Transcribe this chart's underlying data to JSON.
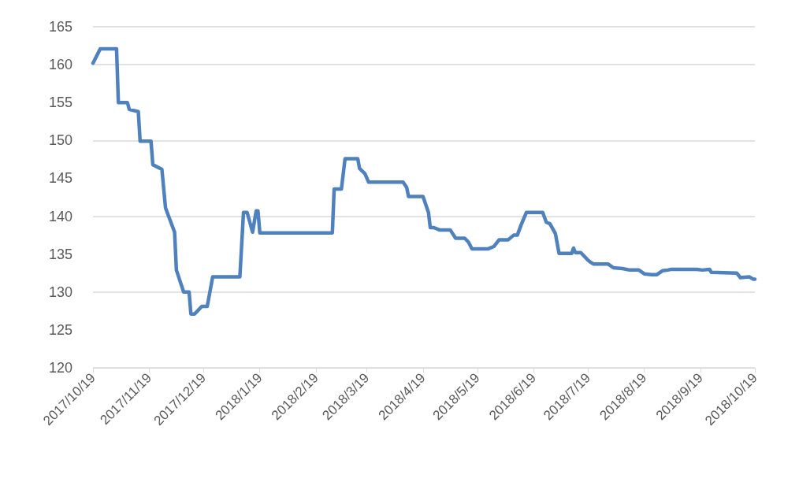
{
  "chart_data": {
    "type": "line",
    "x": [
      "2017-10-19",
      "2017-10-23",
      "2017-11-01",
      "2017-11-02",
      "2017-11-07",
      "2017-11-08",
      "2017-11-13",
      "2017-11-14",
      "2017-11-20",
      "2017-11-21",
      "2017-11-26",
      "2017-11-28",
      "2017-12-03",
      "2017-12-04",
      "2017-12-08",
      "2017-12-11",
      "2017-12-12",
      "2017-12-14",
      "2017-12-18",
      "2017-12-21",
      "2017-12-24",
      "2018-01-08",
      "2018-01-10",
      "2018-01-12",
      "2018-01-15",
      "2018-01-17",
      "2018-01-18",
      "2018-01-19",
      "2018-02-28",
      "2018-03-01",
      "2018-03-05",
      "2018-03-07",
      "2018-03-14",
      "2018-03-15",
      "2018-03-18",
      "2018-03-20",
      "2018-04-08",
      "2018-04-10",
      "2018-04-11",
      "2018-04-19",
      "2018-04-22",
      "2018-04-23",
      "2018-04-25",
      "2018-04-28",
      "2018-05-04",
      "2018-05-07",
      "2018-05-12",
      "2018-05-14",
      "2018-05-16",
      "2018-05-25",
      "2018-05-28",
      "2018-05-31",
      "2018-06-05",
      "2018-06-08",
      "2018-06-10",
      "2018-06-12",
      "2018-06-15",
      "2018-06-24",
      "2018-06-26",
      "2018-06-28",
      "2018-07-01",
      "2018-07-03",
      "2018-07-10",
      "2018-07-11",
      "2018-07-12",
      "2018-07-15",
      "2018-07-19",
      "2018-07-20",
      "2018-07-22",
      "2018-07-30",
      "2018-08-02",
      "2018-08-07",
      "2018-08-11",
      "2018-08-16",
      "2018-08-19",
      "2018-08-23",
      "2018-08-26",
      "2018-08-29",
      "2018-09-01",
      "2018-09-03",
      "2018-09-17",
      "2018-09-20",
      "2018-09-24",
      "2018-09-25",
      "2018-10-09",
      "2018-10-11",
      "2018-10-16",
      "2018-10-18",
      "2018-10-19"
    ],
    "series": [
      {
        "color": "#4f81bd",
        "values": [
          160.2,
          162.1,
          162.1,
          155.0,
          155.0,
          154.1,
          153.8,
          149.9,
          149.9,
          146.8,
          146.2,
          141.1,
          137.9,
          132.9,
          130.0,
          130.0,
          127.1,
          127.1,
          128.1,
          128.1,
          132.0,
          132.0,
          140.5,
          140.5,
          137.9,
          140.7,
          140.7,
          137.8,
          137.8,
          143.6,
          143.6,
          147.6,
          147.6,
          146.3,
          145.6,
          144.5,
          144.5,
          143.8,
          142.6,
          142.6,
          140.5,
          138.5,
          138.5,
          138.2,
          138.2,
          137.1,
          137.1,
          136.6,
          135.7,
          135.7,
          136.0,
          136.9,
          136.9,
          137.5,
          137.5,
          138.8,
          140.5,
          140.5,
          139.2,
          139.0,
          137.7,
          135.1,
          135.1,
          135.8,
          135.2,
          135.2,
          134.2,
          134.0,
          133.7,
          133.7,
          133.2,
          133.1,
          132.9,
          132.9,
          132.4,
          132.3,
          132.3,
          132.8,
          132.9,
          133.0,
          133.0,
          132.9,
          133.0,
          132.6,
          132.5,
          131.9,
          132.0,
          131.7,
          131.7
        ]
      }
    ],
    "xlim": [
      "2017-10-19",
      "2018-10-19"
    ],
    "xticks": [
      {
        "value": "2017-10-19",
        "label": "2017/10/19"
      },
      {
        "value": "2017-11-19",
        "label": "2017/11/19"
      },
      {
        "value": "2017-12-19",
        "label": "2017/12/19"
      },
      {
        "value": "2018-01-19",
        "label": "2018/1/19"
      },
      {
        "value": "2018-02-19",
        "label": "2018/2/19"
      },
      {
        "value": "2018-03-19",
        "label": "2018/3/19"
      },
      {
        "value": "2018-04-19",
        "label": "2018/4/19"
      },
      {
        "value": "2018-05-19",
        "label": "2018/5/19"
      },
      {
        "value": "2018-06-19",
        "label": "2018/6/19"
      },
      {
        "value": "2018-07-19",
        "label": "2018/7/19"
      },
      {
        "value": "2018-08-19",
        "label": "2018/8/19"
      },
      {
        "value": "2018-09-19",
        "label": "2018/9/19"
      },
      {
        "value": "2018-10-19",
        "label": "2018/10/19"
      }
    ],
    "ylim": [
      120,
      165
    ],
    "yticks": [
      120,
      125,
      130,
      135,
      140,
      145,
      150,
      155,
      160,
      165
    ],
    "grid": "y",
    "marker": "none",
    "line_style": "solid"
  }
}
